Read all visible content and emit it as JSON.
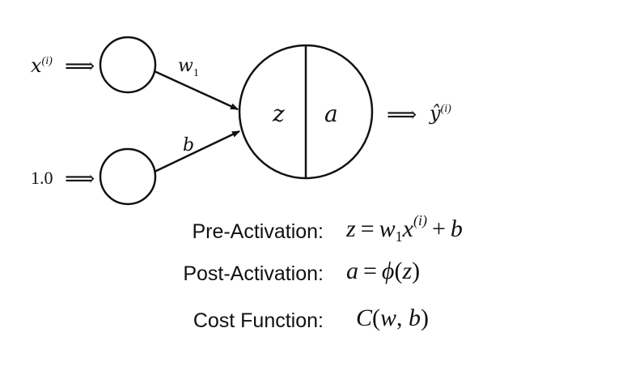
{
  "diagram": {
    "inputs": [
      {
        "name": "x",
        "superscript": "(i)"
      },
      {
        "name": "1.0"
      }
    ],
    "weights": [
      {
        "name": "w",
        "subscript": "1"
      },
      {
        "name": "b"
      }
    ],
    "neuron": {
      "left": "z",
      "right": "a"
    },
    "output": {
      "name": "ŷ",
      "superscript": "(i)"
    },
    "arrow_glyph": "⟹"
  },
  "equations": [
    {
      "label": "Pre-Activation:",
      "formula": "z = w1x(i) + b"
    },
    {
      "label": "Post-Activation:",
      "formula": "a = ϕ(z)"
    },
    {
      "label": "Cost Function:",
      "formula": "C(w, b)"
    }
  ]
}
